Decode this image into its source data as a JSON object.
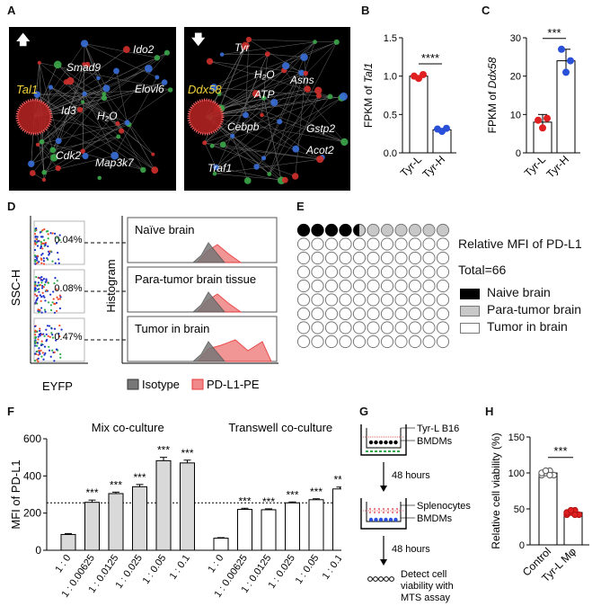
{
  "panels": {
    "A": "A",
    "B": "B",
    "C": "C",
    "D": "D",
    "E": "E",
    "F": "F",
    "G": "G",
    "H": "H"
  },
  "panelA": {
    "left": {
      "arrow": "up-arrow",
      "hub": "Tal1",
      "genes": [
        "Smad9",
        "Ido2",
        "Elovl6",
        "Id3",
        "H₂O",
        "Cdk2",
        "Map3k7"
      ]
    },
    "right": {
      "arrow": "down-arrow",
      "hub": "Ddx58",
      "genes": [
        "Tyr",
        "H₂O",
        "Asns",
        "ATP",
        "Gstp2",
        "Cebpb",
        "Traf1",
        "Acot2"
      ]
    }
  },
  "panelB": {
    "chart_data": {
      "type": "bar",
      "categories": [
        "Tyr-L",
        "Tyr-H"
      ],
      "values": [
        1.0,
        0.3
      ],
      "points": [
        [
          1.0,
          0.97,
          1.02
        ],
        [
          0.31,
          0.28,
          0.32
        ]
      ],
      "ylabel_prefix": "FPKM of ",
      "ylabel_gene": "Tal1",
      "ylim": [
        0,
        1.5
      ],
      "yticks": [
        "0.0",
        "0.5",
        "1.0",
        "1.5"
      ],
      "significance": "****"
    }
  },
  "panelC": {
    "chart_data": {
      "type": "bar",
      "categories": [
        "Tyr-L",
        "Tyr-H"
      ],
      "values": [
        8,
        24
      ],
      "errors": [
        2,
        3
      ],
      "points": [
        [
          8.5,
          6.5,
          9
        ],
        [
          27,
          21,
          24
        ]
      ],
      "ylabel_prefix": "FPKM of ",
      "ylabel_gene": "Ddx58",
      "ylim": [
        0,
        30
      ],
      "yticks": [
        "0",
        "10",
        "20",
        "30"
      ],
      "significance": "***"
    }
  },
  "panelD": {
    "flow": {
      "ylabel": "SSC-H",
      "xlabel": "EYFP",
      "percents": [
        "0.04%",
        "0.08%",
        "0.47%"
      ]
    },
    "histogram": {
      "ylabel": "Histogram",
      "rows": [
        "Naïve brain",
        "Para-tumor brain tissue",
        "Tumor in brain"
      ]
    },
    "legend": [
      "Isotype",
      "PD-L1-PE"
    ],
    "colors": {
      "isotype": "#555555",
      "pdl1": "#e83a3a"
    }
  },
  "panelE": {
    "title": "Relative MFI of PD-L1",
    "total": "Total=66",
    "grid": {
      "rows": 9,
      "cols": 11,
      "black": 4,
      "half": 1,
      "grey": 6
    },
    "legend": [
      "Naive brain",
      "Para-tumor brain",
      "Tumor in brain"
    ]
  },
  "panelF": {
    "chart_data": {
      "type": "bar",
      "ylabel": "MFI of PD-L1",
      "ylim": [
        0,
        600
      ],
      "yticks": [
        "0",
        "200",
        "400",
        "600"
      ],
      "groups": [
        {
          "name": "Mix co-culture",
          "categories": [
            "1 : 0",
            "1 : 0.00625",
            "1 : 0.0125",
            "1 : 0.025",
            "1 : 0.05",
            "1 : 0.1"
          ],
          "values": [
            85,
            258,
            305,
            342,
            482,
            470
          ],
          "errors": [
            5,
            12,
            8,
            12,
            18,
            15
          ],
          "significance": [
            "",
            "***",
            "***",
            "***",
            "***",
            "***"
          ]
        },
        {
          "name": "Transwell co-culture",
          "categories": [
            "1 : 0",
            "1 : 0.00625",
            "1 : 0.0125",
            "1 : 0.025",
            "1 : 0.05",
            "1 : 0.1"
          ],
          "values": [
            65,
            220,
            218,
            255,
            272,
            330
          ],
          "errors": [
            3,
            6,
            5,
            5,
            5,
            10
          ],
          "significance": [
            "",
            "***",
            "***",
            "***",
            "***",
            "***"
          ]
        }
      ],
      "reference_line": 255
    }
  },
  "panelG": {
    "label1a": "Tyr-L B16",
    "label1b": "BMDMs",
    "step1": "48 hours",
    "label2a": "Splenocytes",
    "label2b": "BMDMs",
    "step2": "48 hours",
    "final": [
      "Detect cell",
      "viability with",
      "MTS assay"
    ]
  },
  "panelH": {
    "chart_data": {
      "type": "bar",
      "ylabel": "Relative cell viability (%)",
      "categories": [
        "Control",
        "Tyr-L Mφ"
      ],
      "values": [
        100,
        45
      ],
      "errors": [
        4,
        5
      ],
      "ylim": [
        0,
        150
      ],
      "yticks": [
        "0",
        "50",
        "100",
        "150"
      ],
      "significance": "***"
    }
  }
}
